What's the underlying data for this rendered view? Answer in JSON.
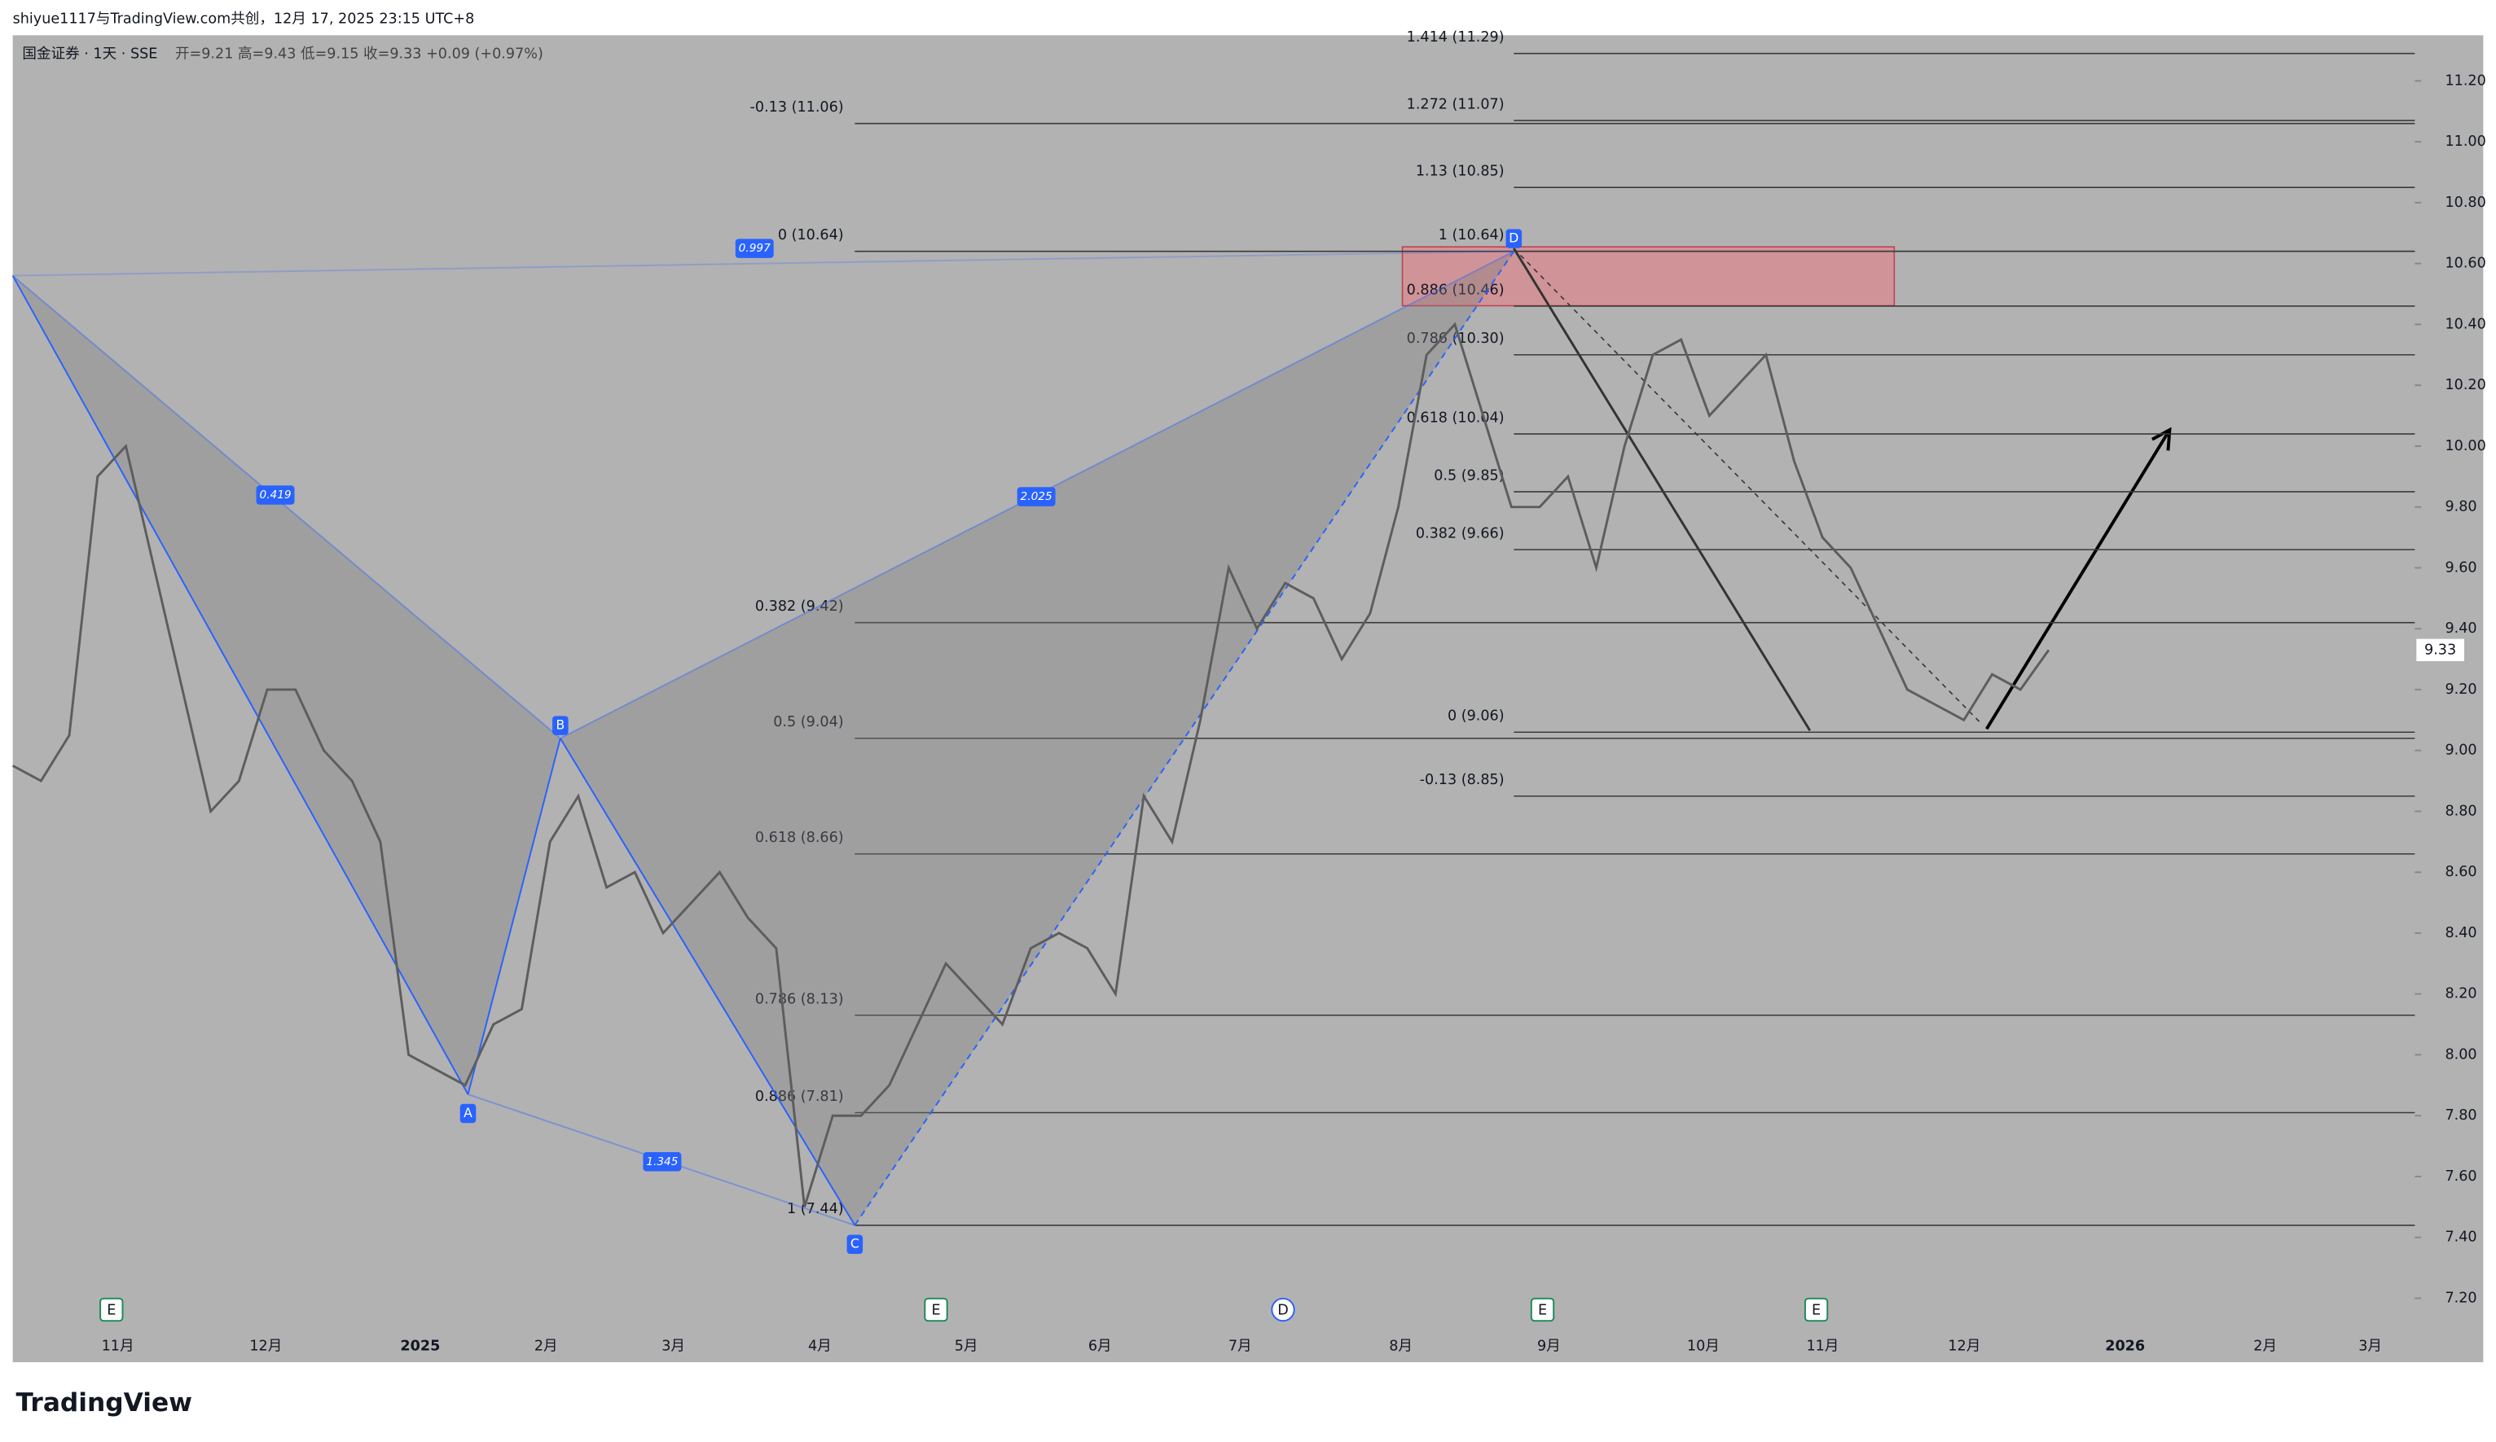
{
  "header": {
    "watermark": "shiyue1117与TradingView.com共创，12月 17, 2025 23:15 UTC+8",
    "symbol": "国金证券 · 1天 · SSE",
    "ohlc": "开=9.21  高=9.43  低=9.15  收=9.33  +0.09 (+0.97%)"
  },
  "chart_data": {
    "type": "line",
    "color": "#5d5d5d",
    "values": [
      8.95,
      8.9,
      9.05,
      9.9,
      10.0,
      9.6,
      9.2,
      8.8,
      8.9,
      9.2,
      9.2,
      9.0,
      8.9,
      8.7,
      8.0,
      7.95,
      7.9,
      8.1,
      8.15,
      8.7,
      8.85,
      8.55,
      8.6,
      8.4,
      8.5,
      8.6,
      8.45,
      8.35,
      7.5,
      7.8,
      7.8,
      7.9,
      8.1,
      8.3,
      8.2,
      8.1,
      8.35,
      8.4,
      8.35,
      8.2,
      8.85,
      8.7,
      9.1,
      9.6,
      9.4,
      9.55,
      9.5,
      9.3,
      9.45,
      9.8,
      10.3,
      10.4,
      10.1,
      9.8,
      9.8,
      9.9,
      9.6,
      10.0,
      10.3,
      10.35,
      10.1,
      10.2,
      10.3,
      9.95,
      9.7,
      9.6,
      9.4,
      9.2,
      9.15,
      9.1,
      9.25,
      9.2,
      9.33
    ],
    "ylim": [
      6.99,
      11.35
    ],
    "yticks": [
      {
        "value": 7.2,
        "label": "7.20"
      },
      {
        "value": 7.4,
        "label": "7.40"
      },
      {
        "value": 7.6,
        "label": "7.60"
      },
      {
        "value": 7.8,
        "label": "7.80"
      },
      {
        "value": 8,
        "label": "8.00"
      },
      {
        "value": 8.2,
        "label": "8.20"
      },
      {
        "value": 8.4,
        "label": "8.40"
      },
      {
        "value": 8.6,
        "label": "8.60"
      },
      {
        "value": 8.8,
        "label": "8.80"
      },
      {
        "value": 9,
        "label": "9.00"
      },
      {
        "value": 9.2,
        "label": "9.20"
      },
      {
        "value": 9.4,
        "label": "9.40"
      },
      {
        "value": 9.6,
        "label": "9.60"
      },
      {
        "value": 9.8,
        "label": "9.80"
      },
      {
        "value": 10,
        "label": "10.00"
      },
      {
        "value": 10.2,
        "label": "10.20"
      },
      {
        "value": 10.4,
        "label": "10.40"
      },
      {
        "value": 10.6,
        "label": "10.60"
      },
      {
        "value": 10.8,
        "label": "10.80"
      },
      {
        "value": 11,
        "label": "11.00"
      },
      {
        "value": 11.2,
        "label": "11.20"
      }
    ],
    "x_labels": [
      "11月",
      "12月",
      "2025",
      "2月",
      "3月",
      "4月",
      "5月",
      "6月",
      "7月",
      "8月",
      "9月",
      "10月",
      "11月",
      "12月",
      "2026",
      "2月",
      "3月"
    ],
    "last_price": {
      "value": 9.33,
      "label": "9.33"
    },
    "fib_left": [
      {
        "label": "-0.13 (11.06)",
        "price": 11.06
      },
      {
        "label": "0 (10.64)",
        "price": 10.64
      },
      {
        "label": "0.382 (9.42)",
        "price": 9.42
      },
      {
        "label": "0.5 (9.04)",
        "price": 9.04
      },
      {
        "label": "0.618 (8.66)",
        "price": 8.66
      },
      {
        "label": "0.786 (8.13)",
        "price": 8.13
      },
      {
        "label": "0.886 (7.81)",
        "price": 7.81
      },
      {
        "label": "1 (7.44)",
        "price": 7.44
      }
    ],
    "fib_right": [
      {
        "label": "1.414 (11.29)",
        "price": 11.29
      },
      {
        "label": "1.272 (11.07)",
        "price": 11.07
      },
      {
        "label": "1.13 (10.85)",
        "price": 10.85
      },
      {
        "label": "1 (10.64)",
        "price": 10.64
      },
      {
        "label": "0.886 (10.46)",
        "price": 10.46
      },
      {
        "label": "0.786 (10.30)",
        "price": 10.3
      },
      {
        "label": "0.618 (10.04)",
        "price": 10.04
      },
      {
        "label": "0.5 (9.85)",
        "price": 9.85
      },
      {
        "label": "0.382 (9.66)",
        "price": 9.66
      },
      {
        "label": "0 (9.06)",
        "price": 9.06
      },
      {
        "label": "-0.13 (8.85)",
        "price": 8.85
      }
    ],
    "pattern": {
      "x_price": 10.56,
      "points": [
        {
          "label": "A",
          "price": 7.87
        },
        {
          "label": "B",
          "price": 9.04
        },
        {
          "label": "C",
          "price": 7.44
        },
        {
          "label": "D",
          "price": 10.64
        }
      ],
      "ratios": [
        "0.419",
        "2.025",
        "1.345",
        "0.997"
      ]
    },
    "events": [
      "E",
      "E",
      "D",
      "E",
      "E"
    ]
  },
  "brand": "TradingView"
}
